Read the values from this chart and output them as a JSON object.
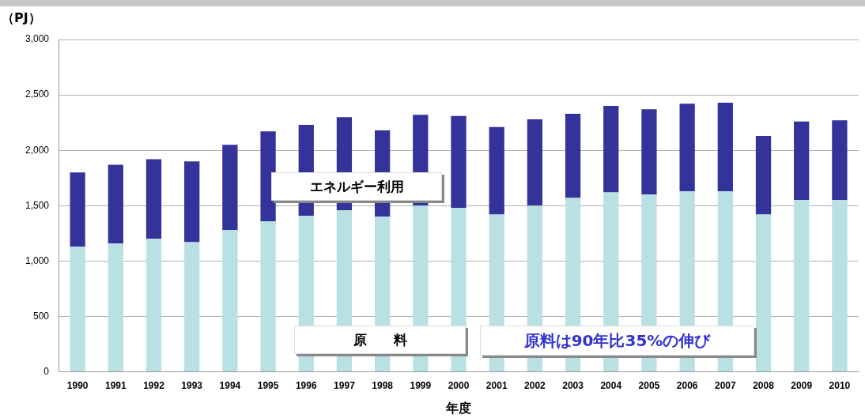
{
  "chart_data": {
    "type": "bar",
    "stacked": true,
    "ylabel": "（PJ）",
    "xlabel": "年度",
    "categories": [
      "1990",
      "1991",
      "1992",
      "1993",
      "1994",
      "1995",
      "1996",
      "1997",
      "1998",
      "1999",
      "2000",
      "2001",
      "2002",
      "2003",
      "2004",
      "2005",
      "2006",
      "2007",
      "2008",
      "2009",
      "2010"
    ],
    "series": [
      {
        "name": "原　　料",
        "color": "#b9e0e3",
        "values": [
          1130,
          1160,
          1200,
          1170,
          1280,
          1360,
          1410,
          1460,
          1400,
          1500,
          1480,
          1420,
          1500,
          1570,
          1620,
          1600,
          1630,
          1630,
          1420,
          1550,
          1550
        ]
      },
      {
        "name": "エネルギー利用",
        "color": "#333399",
        "values": [
          670,
          710,
          720,
          730,
          770,
          810,
          820,
          840,
          780,
          820,
          830,
          790,
          780,
          760,
          780,
          770,
          790,
          800,
          710,
          710,
          720
        ]
      }
    ],
    "ylim": [
      0,
      3000
    ],
    "yticks": [
      0,
      {
        "value": 500,
        "label": "500"
      },
      {
        "value": 1000,
        "label": "1,000"
      },
      {
        "value": 1500,
        "label": "1,500"
      },
      {
        "value": 2000,
        "label": "2,000"
      },
      {
        "value": 2500,
        "label": "2,500"
      },
      {
        "value": 3000,
        "label": "3,000"
      }
    ],
    "grid": "y",
    "legend": false,
    "annotations": [
      "原料は90年比35%の伸び"
    ]
  }
}
